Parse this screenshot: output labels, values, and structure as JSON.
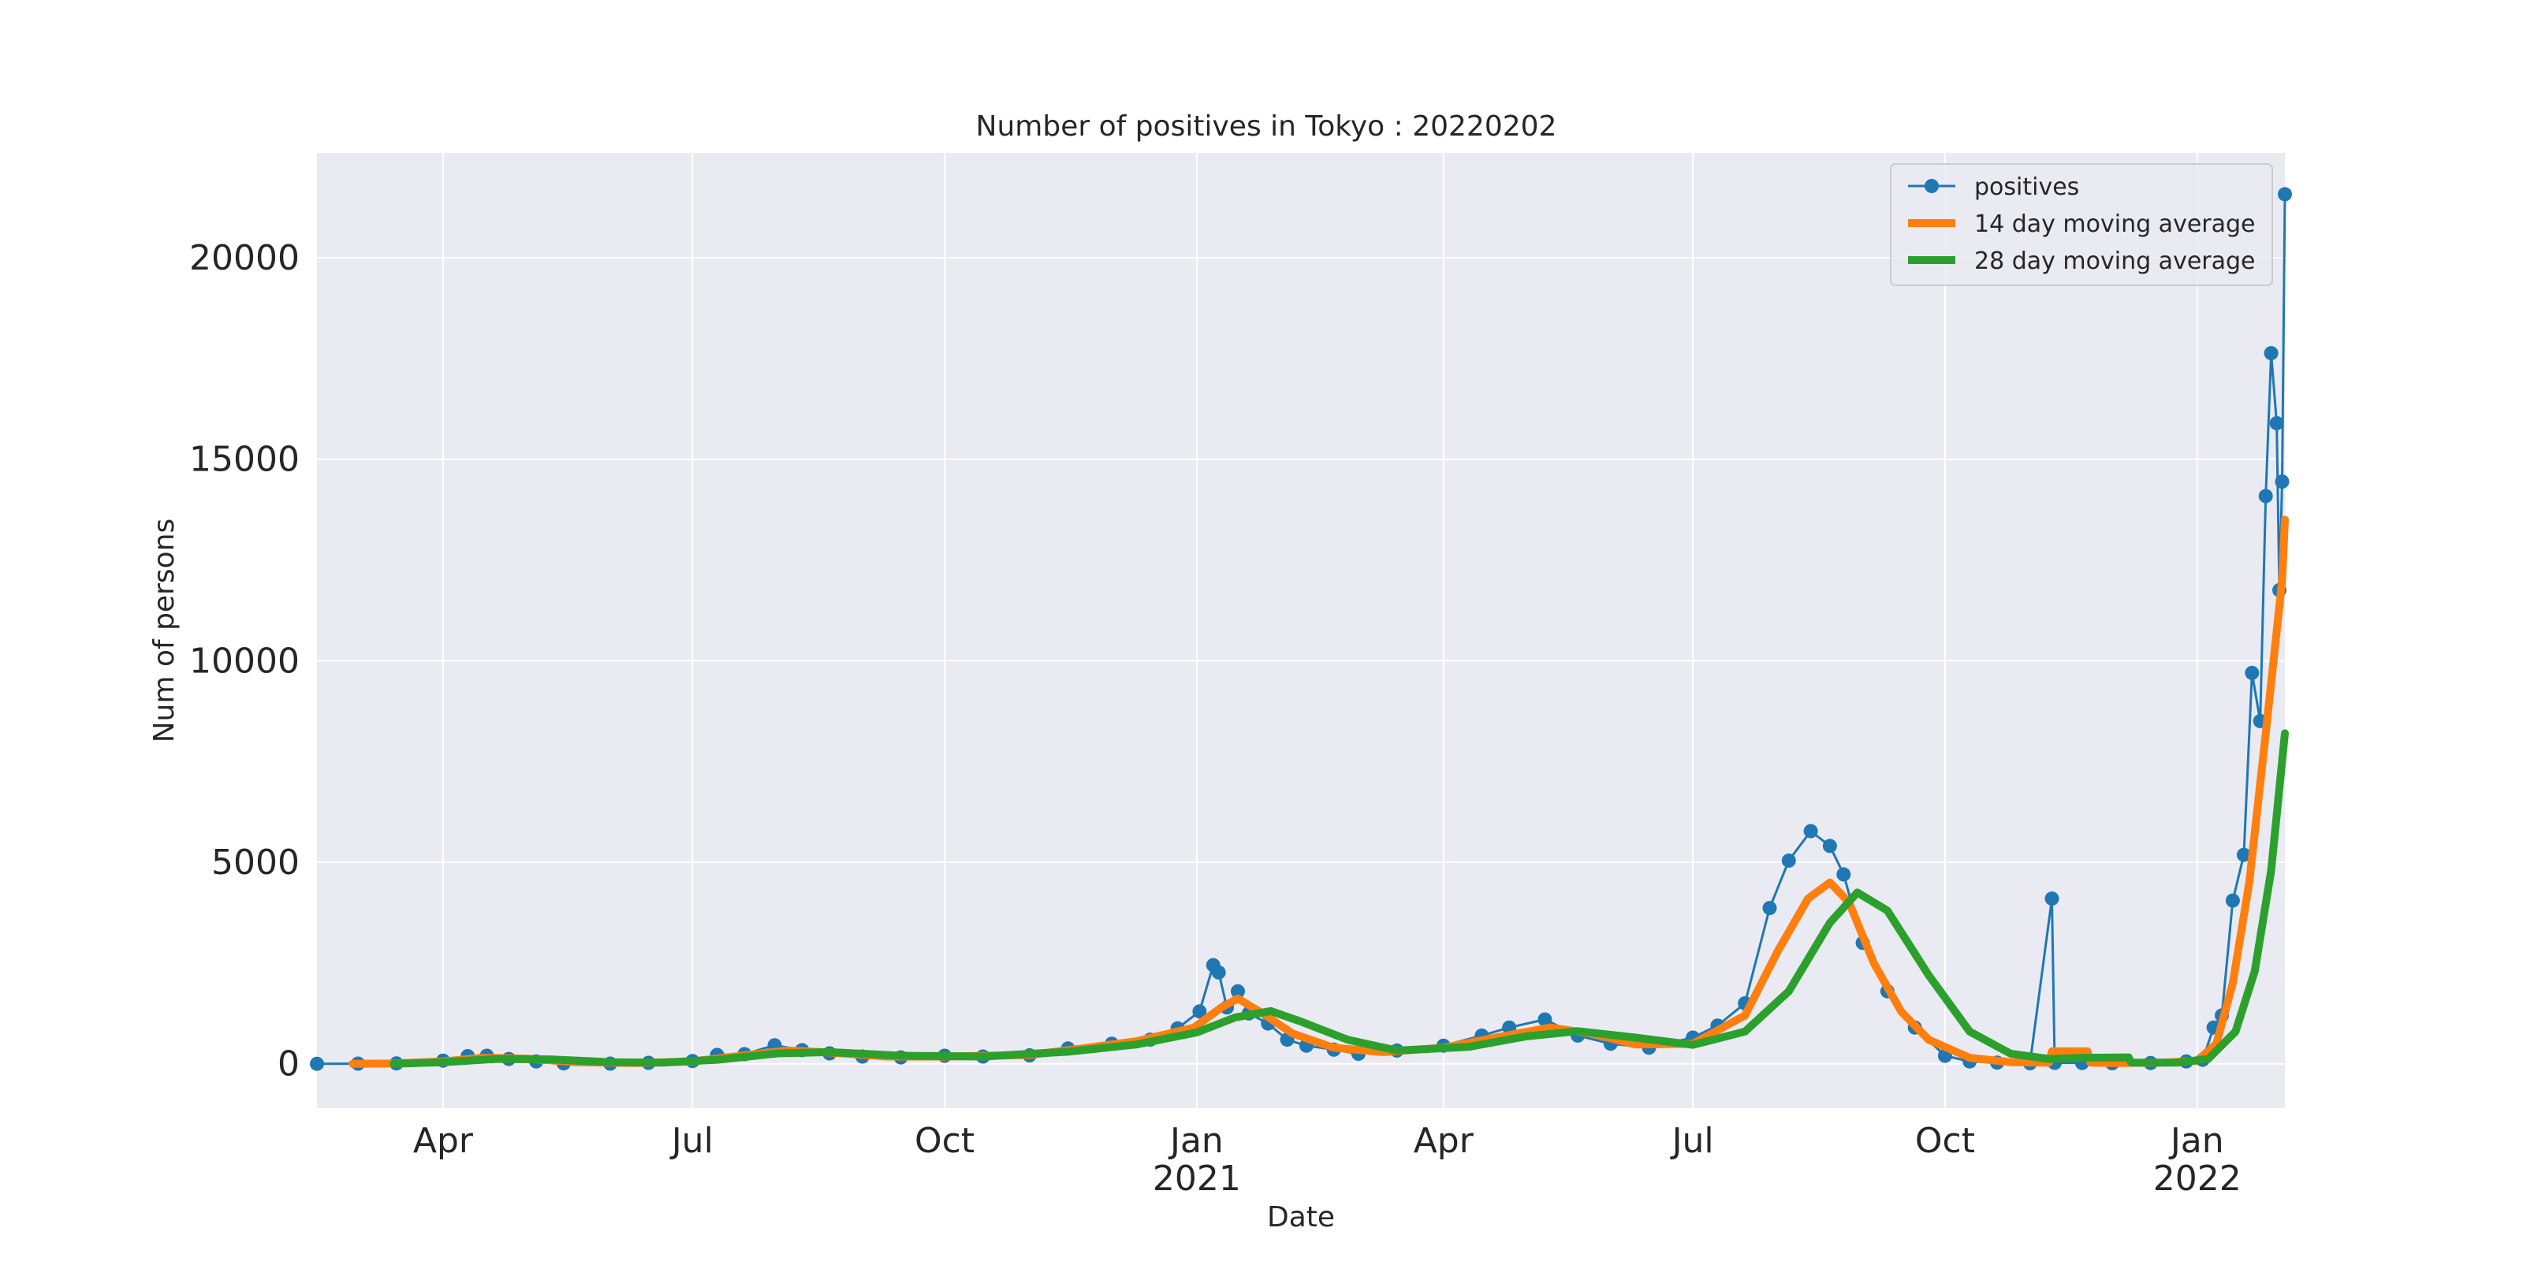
{
  "chart_data": {
    "type": "line",
    "title": "Number of positives in Tokyo : 20220202",
    "xlabel": "Date",
    "ylabel": "Num of persons",
    "xlim": [
      "2020-02-15",
      "2022-02-02"
    ],
    "ylim": [
      -1100,
      22600
    ],
    "yticks": [
      0,
      5000,
      10000,
      15000,
      20000
    ],
    "xticks": [
      {
        "date": "2020-04-01",
        "label": "Apr",
        "year": ""
      },
      {
        "date": "2020-07-01",
        "label": "Jul",
        "year": ""
      },
      {
        "date": "2020-10-01",
        "label": "Oct",
        "year": ""
      },
      {
        "date": "2021-01-01",
        "label": "Jan",
        "year": "2021"
      },
      {
        "date": "2021-04-01",
        "label": "Apr",
        "year": ""
      },
      {
        "date": "2021-07-01",
        "label": "Jul",
        "year": ""
      },
      {
        "date": "2021-10-01",
        "label": "Oct",
        "year": ""
      },
      {
        "date": "2022-01-01",
        "label": "Jan",
        "year": "2022"
      }
    ],
    "grid": true,
    "background": "#eaeaf2",
    "legend_position": "top-right",
    "series": [
      {
        "name": "positives",
        "color": "#1f77b4",
        "marker": "circle",
        "points": [
          [
            "2020-02-15",
            0
          ],
          [
            "2020-03-01",
            5
          ],
          [
            "2020-03-15",
            10
          ],
          [
            "2020-04-01",
            80
          ],
          [
            "2020-04-10",
            190
          ],
          [
            "2020-04-17",
            200
          ],
          [
            "2020-04-25",
            120
          ],
          [
            "2020-05-05",
            60
          ],
          [
            "2020-05-15",
            10
          ],
          [
            "2020-06-01",
            5
          ],
          [
            "2020-06-15",
            25
          ],
          [
            "2020-07-01",
            70
          ],
          [
            "2020-07-10",
            220
          ],
          [
            "2020-07-20",
            240
          ],
          [
            "2020-07-31",
            460
          ],
          [
            "2020-08-10",
            340
          ],
          [
            "2020-08-20",
            260
          ],
          [
            "2020-09-01",
            180
          ],
          [
            "2020-09-15",
            160
          ],
          [
            "2020-10-01",
            200
          ],
          [
            "2020-10-15",
            180
          ],
          [
            "2020-11-01",
            210
          ],
          [
            "2020-11-15",
            380
          ],
          [
            "2020-12-01",
            500
          ],
          [
            "2020-12-15",
            600
          ],
          [
            "2020-12-25",
            880
          ],
          [
            "2021-01-02",
            1300
          ],
          [
            "2021-01-07",
            2447
          ],
          [
            "2021-01-09",
            2268
          ],
          [
            "2021-01-12",
            1400
          ],
          [
            "2021-01-16",
            1800
          ],
          [
            "2021-01-20",
            1250
          ],
          [
            "2021-01-27",
            1000
          ],
          [
            "2021-02-03",
            600
          ],
          [
            "2021-02-10",
            450
          ],
          [
            "2021-02-20",
            350
          ],
          [
            "2021-03-01",
            250
          ],
          [
            "2021-03-15",
            330
          ],
          [
            "2021-04-01",
            450
          ],
          [
            "2021-04-15",
            700
          ],
          [
            "2021-04-25",
            900
          ],
          [
            "2021-05-08",
            1100
          ],
          [
            "2021-05-20",
            700
          ],
          [
            "2021-06-01",
            500
          ],
          [
            "2021-06-15",
            400
          ],
          [
            "2021-07-01",
            650
          ],
          [
            "2021-07-10",
            950
          ],
          [
            "2021-07-20",
            1500
          ],
          [
            "2021-07-29",
            3865
          ],
          [
            "2021-08-05",
            5042
          ],
          [
            "2021-08-13",
            5773
          ],
          [
            "2021-08-20",
            5405
          ],
          [
            "2021-08-25",
            4700
          ],
          [
            "2021-09-01",
            3000
          ],
          [
            "2021-09-10",
            1800
          ],
          [
            "2021-09-20",
            900
          ],
          [
            "2021-10-01",
            200
          ],
          [
            "2021-10-10",
            60
          ],
          [
            "2021-10-20",
            30
          ],
          [
            "2021-11-01",
            15
          ],
          [
            "2021-11-09",
            4100
          ],
          [
            "2021-11-10",
            25
          ],
          [
            "2021-11-20",
            20
          ],
          [
            "2021-12-01",
            15
          ],
          [
            "2021-12-15",
            20
          ],
          [
            "2021-12-28",
            60
          ],
          [
            "2022-01-03",
            100
          ],
          [
            "2022-01-07",
            900
          ],
          [
            "2022-01-10",
            1200
          ],
          [
            "2022-01-14",
            4051
          ],
          [
            "2022-01-18",
            5185
          ],
          [
            "2022-01-21",
            9699
          ],
          [
            "2022-01-24",
            8503
          ],
          [
            "2022-01-26",
            14086
          ],
          [
            "2022-01-28",
            17631
          ],
          [
            "2022-01-30",
            15895
          ],
          [
            "2022-01-31",
            11751
          ],
          [
            "2022-02-01",
            14445
          ],
          [
            "2022-02-02",
            21576
          ]
        ]
      },
      {
        "name": "14 day moving average",
        "color": "#ff7f0e",
        "points": [
          [
            "2020-02-28",
            0
          ],
          [
            "2020-03-15",
            10
          ],
          [
            "2020-04-01",
            60
          ],
          [
            "2020-04-15",
            150
          ],
          [
            "2020-05-01",
            130
          ],
          [
            "2020-05-20",
            40
          ],
          [
            "2020-06-10",
            20
          ],
          [
            "2020-07-01",
            60
          ],
          [
            "2020-07-20",
            210
          ],
          [
            "2020-08-05",
            330
          ],
          [
            "2020-08-20",
            280
          ],
          [
            "2020-09-10",
            180
          ],
          [
            "2020-10-01",
            180
          ],
          [
            "2020-11-01",
            220
          ],
          [
            "2020-11-20",
            380
          ],
          [
            "2020-12-10",
            560
          ],
          [
            "2020-12-31",
            900
          ],
          [
            "2021-01-10",
            1400
          ],
          [
            "2021-01-16",
            1620
          ],
          [
            "2021-01-25",
            1250
          ],
          [
            "2021-02-05",
            750
          ],
          [
            "2021-02-20",
            400
          ],
          [
            "2021-03-10",
            290
          ],
          [
            "2021-04-01",
            400
          ],
          [
            "2021-04-20",
            650
          ],
          [
            "2021-05-10",
            900
          ],
          [
            "2021-05-25",
            750
          ],
          [
            "2021-06-10",
            480
          ],
          [
            "2021-07-01",
            500
          ],
          [
            "2021-07-20",
            1200
          ],
          [
            "2021-08-01",
            2800
          ],
          [
            "2021-08-12",
            4100
          ],
          [
            "2021-08-20",
            4500
          ],
          [
            "2021-08-27",
            4000
          ],
          [
            "2021-09-05",
            2500
          ],
          [
            "2021-09-15",
            1300
          ],
          [
            "2021-09-25",
            600
          ],
          [
            "2021-10-10",
            150
          ],
          [
            "2021-10-25",
            40
          ],
          [
            "2021-11-08",
            30
          ],
          [
            "2021-11-09",
            310
          ],
          [
            "2021-11-22",
            310
          ],
          [
            "2021-11-23",
            30
          ],
          [
            "2021-12-01",
            20
          ],
          [
            "2021-12-20",
            30
          ],
          [
            "2022-01-01",
            80
          ],
          [
            "2022-01-08",
            500
          ],
          [
            "2022-01-14",
            2000
          ],
          [
            "2022-01-20",
            4500
          ],
          [
            "2022-01-26",
            8200
          ],
          [
            "2022-02-01",
            12000
          ],
          [
            "2022-02-02",
            13500
          ]
        ]
      },
      {
        "name": "28 day moving average",
        "color": "#2ca02c",
        "points": [
          [
            "2020-03-14",
            0
          ],
          [
            "2020-04-01",
            40
          ],
          [
            "2020-04-20",
            120
          ],
          [
            "2020-05-10",
            110
          ],
          [
            "2020-06-01",
            40
          ],
          [
            "2020-06-20",
            30
          ],
          [
            "2020-07-10",
            100
          ],
          [
            "2020-08-01",
            260
          ],
          [
            "2020-08-20",
            290
          ],
          [
            "2020-09-15",
            200
          ],
          [
            "2020-10-15",
            180
          ],
          [
            "2020-11-15",
            300
          ],
          [
            "2020-12-10",
            480
          ],
          [
            "2021-01-01",
            780
          ],
          [
            "2021-01-15",
            1150
          ],
          [
            "2021-01-28",
            1310
          ],
          [
            "2021-02-08",
            1050
          ],
          [
            "2021-02-25",
            600
          ],
          [
            "2021-03-15",
            330
          ],
          [
            "2021-04-10",
            420
          ],
          [
            "2021-05-01",
            680
          ],
          [
            "2021-05-20",
            810
          ],
          [
            "2021-06-10",
            650
          ],
          [
            "2021-07-01",
            470
          ],
          [
            "2021-07-20",
            800
          ],
          [
            "2021-08-05",
            1800
          ],
          [
            "2021-08-20",
            3500
          ],
          [
            "2021-08-30",
            4250
          ],
          [
            "2021-09-10",
            3800
          ],
          [
            "2021-09-25",
            2200
          ],
          [
            "2021-10-10",
            800
          ],
          [
            "2021-10-25",
            250
          ],
          [
            "2021-11-08",
            120
          ],
          [
            "2021-11-20",
            150
          ],
          [
            "2021-12-07",
            160
          ],
          [
            "2021-12-08",
            30
          ],
          [
            "2021-12-25",
            30
          ],
          [
            "2022-01-05",
            120
          ],
          [
            "2022-01-15",
            800
          ],
          [
            "2022-01-22",
            2300
          ],
          [
            "2022-01-28",
            4800
          ],
          [
            "2022-02-02",
            8200
          ]
        ]
      }
    ]
  }
}
